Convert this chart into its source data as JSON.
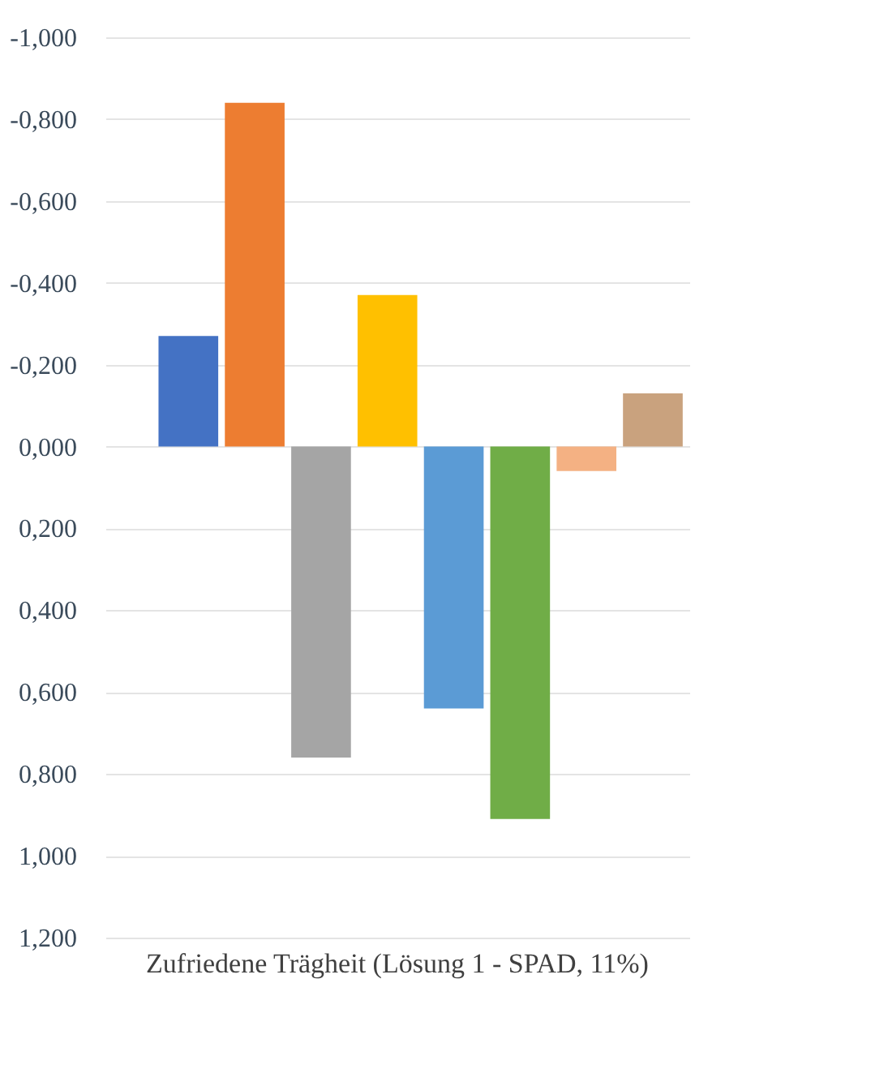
{
  "chart_data": {
    "type": "bar",
    "categories": [
      "Zufriedene Trägheit\n(Lösung 1 - SPAD, 11%)"
    ],
    "series": [
      {
        "color": "#4472c4",
        "values": [
          -0.27
        ]
      },
      {
        "color": "#ed7d31",
        "values": [
          -0.84
        ]
      },
      {
        "color": "#a5a5a5",
        "values": [
          0.76
        ]
      },
      {
        "color": "#ffc000",
        "values": [
          -0.37
        ]
      },
      {
        "color": "#5b9bd5",
        "values": [
          0.64
        ]
      },
      {
        "color": "#70ad47",
        "values": [
          0.91
        ]
      },
      {
        "color": "#f4b183",
        "values": [
          0.06
        ]
      },
      {
        "color": "#c9a27e",
        "values": [
          -0.13
        ]
      }
    ],
    "ylim": [
      1.2,
      -1
    ],
    "yticks": [
      {
        "value": -1,
        "label": "-1,000"
      },
      {
        "value": -0.8,
        "label": "-0,800"
      },
      {
        "value": -0.6,
        "label": "-0,600"
      },
      {
        "value": -0.4,
        "label": "-0,400"
      },
      {
        "value": -0.2,
        "label": "-0,200"
      },
      {
        "value": 0,
        "label": "0,000"
      },
      {
        "value": 0.2,
        "label": "0,200"
      },
      {
        "value": 0.4,
        "label": "0,400"
      },
      {
        "value": 0.6,
        "label": "0,600"
      },
      {
        "value": 0.8,
        "label": "0,800"
      },
      {
        "value": 1,
        "label": "1,000"
      },
      {
        "value": 1.2,
        "label": "1,200"
      }
    ],
    "grid": "y"
  }
}
